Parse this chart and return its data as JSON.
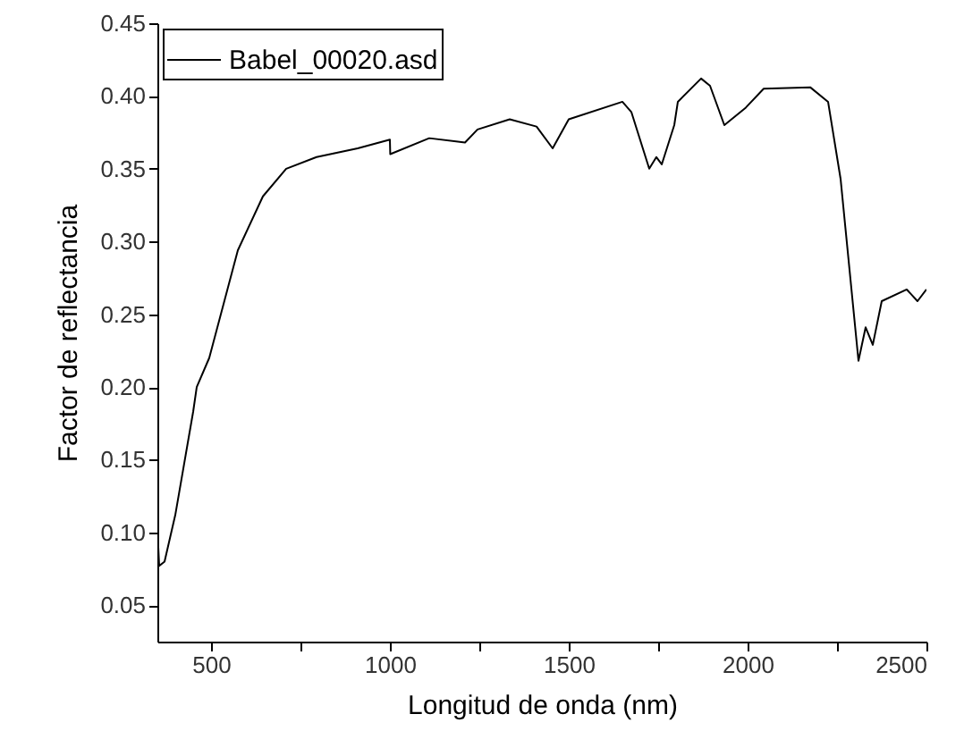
{
  "chart_data": {
    "type": "line",
    "xlabel": "Longitud de onda (nm)",
    "ylabel": "Factor de reflectancia",
    "legend": "top left",
    "grid": false,
    "xlim": [
      350,
      2500
    ],
    "ylim": [
      0.025,
      0.45
    ],
    "xticks": [
      500,
      {
        "value": 750,
        "label": null
      },
      1000,
      {
        "value": 1250,
        "label": null
      },
      1500,
      {
        "value": 1750,
        "label": null
      },
      2000,
      {
        "value": 2250,
        "label": null
      },
      2500
    ],
    "yticks": [
      {
        "value": 0.05,
        "label": "0.05"
      },
      {
        "value": 0.1,
        "label": "0.10"
      },
      {
        "value": 0.15,
        "label": "0.15"
      },
      {
        "value": 0.2,
        "label": "0.20"
      },
      {
        "value": 0.25,
        "label": "0.25"
      },
      {
        "value": 0.3,
        "label": "0.30"
      },
      {
        "value": 0.35,
        "label": "0.35"
      },
      {
        "value": 0.4,
        "label": "0.40"
      },
      {
        "value": 0.45,
        "label": "0.45"
      }
    ],
    "series": [
      {
        "name": "Babel_00020.asd",
        "color": "#000000",
        "x": [
          350,
          355,
          370,
          400,
          450,
          460,
          495,
          575,
          645,
          710,
          795,
          910,
          1000,
          1001,
          1110,
          1210,
          1245,
          1335,
          1410,
          1455,
          1500,
          1650,
          1675,
          1725,
          1745,
          1760,
          1795,
          1805,
          1870,
          1895,
          1935,
          1995,
          2045,
          2175,
          2225,
          2260,
          2310,
          2330,
          2350,
          2375,
          2445,
          2475,
          2500
        ],
        "values": [
          0.103,
          0.077,
          0.08,
          0.112,
          0.183,
          0.2,
          0.22,
          0.294,
          0.331,
          0.35,
          0.358,
          0.364,
          0.37,
          0.36,
          0.371,
          0.368,
          0.377,
          0.384,
          0.379,
          0.364,
          0.384,
          0.396,
          0.389,
          0.35,
          0.358,
          0.353,
          0.38,
          0.396,
          0.412,
          0.407,
          0.38,
          0.392,
          0.405,
          0.406,
          0.396,
          0.343,
          0.218,
          0.241,
          0.229,
          0.259,
          0.267,
          0.259,
          0.267
        ]
      }
    ]
  }
}
